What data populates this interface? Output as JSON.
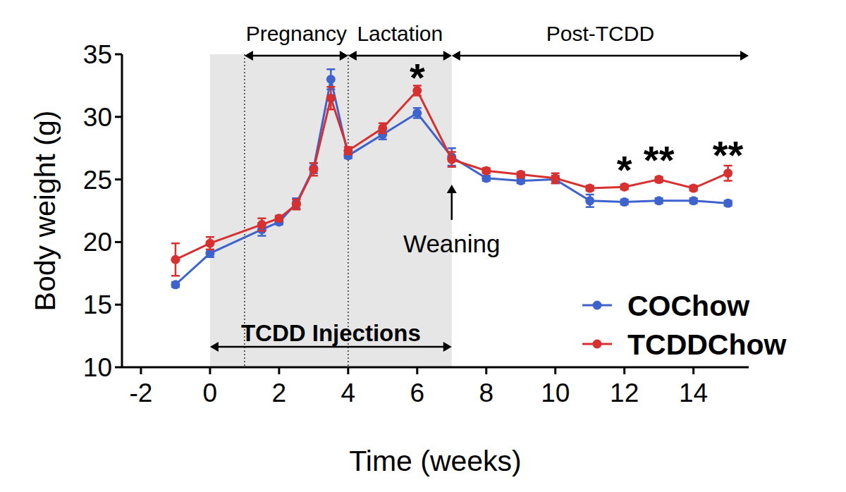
{
  "chart_data": {
    "type": "line",
    "x_label": "Time (weeks)",
    "y_label": "Body weight (g)",
    "x": [
      -1,
      0,
      1.5,
      2,
      2.5,
      3,
      3.5,
      4,
      5,
      6,
      7,
      8,
      9,
      10,
      11,
      12,
      13,
      14,
      15
    ],
    "series": [
      {
        "name": "COChow",
        "color": "#3f63cc",
        "marker": "circle",
        "line_style": "solid",
        "values": [
          16.6,
          19.1,
          21.0,
          21.6,
          23.1,
          25.9,
          33.0,
          26.9,
          28.6,
          30.3,
          26.8,
          25.1,
          24.9,
          25.0,
          23.3,
          23.2,
          23.3,
          23.3,
          23.1
        ],
        "errors": [
          0.2,
          0.3,
          0.5,
          0.2,
          0.4,
          0.4,
          0.8,
          0.2,
          0.4,
          0.4,
          0.7,
          0.2,
          0.2,
          0.3,
          0.5,
          0.2,
          0.2,
          0.2,
          0.2
        ]
      },
      {
        "name": "TCDDChow",
        "color": "#d63030",
        "marker": "circle",
        "line_style": "solid",
        "values": [
          18.6,
          19.9,
          21.4,
          21.9,
          23.0,
          25.8,
          31.5,
          27.3,
          29.1,
          32.1,
          26.6,
          25.7,
          25.4,
          25.1,
          24.3,
          24.4,
          25.0,
          24.3,
          25.5
        ],
        "errors": [
          1.3,
          0.5,
          0.5,
          0.2,
          0.4,
          0.5,
          0.9,
          0.3,
          0.4,
          0.4,
          0.6,
          0.2,
          0.2,
          0.4,
          0.2,
          0.2,
          0.2,
          0.2,
          0.6
        ]
      }
    ],
    "xlim": [
      -2.55,
      15.6
    ],
    "xticks": [
      -2,
      0,
      2,
      4,
      6,
      8,
      10,
      12,
      14
    ],
    "ylim": [
      10,
      35
    ],
    "yticks": [
      10,
      15,
      20,
      25,
      30,
      35
    ],
    "grid": false,
    "legend": "bottom-right",
    "periods": [
      {
        "label": "Pregnancy",
        "start": 1,
        "end": 4
      },
      {
        "label": "Lactation",
        "start": 4,
        "end": 7
      },
      {
        "label": "Post-TCDD",
        "start": 7,
        "end": 15.6
      }
    ],
    "shaded": {
      "label": "TCDD Injections",
      "start": 0,
      "end": 7
    },
    "dividers": [
      1,
      4
    ],
    "marker_annotation": {
      "label": "Weaning",
      "x": 7
    },
    "annotations": [
      {
        "text": "*",
        "x": 6,
        "y": 33.9
      },
      {
        "text": "*",
        "x": 12,
        "y": 26.5
      },
      {
        "text": "**",
        "x": 13,
        "y": 27.3
      },
      {
        "text": "**",
        "x": 15,
        "y": 27.7
      }
    ]
  }
}
